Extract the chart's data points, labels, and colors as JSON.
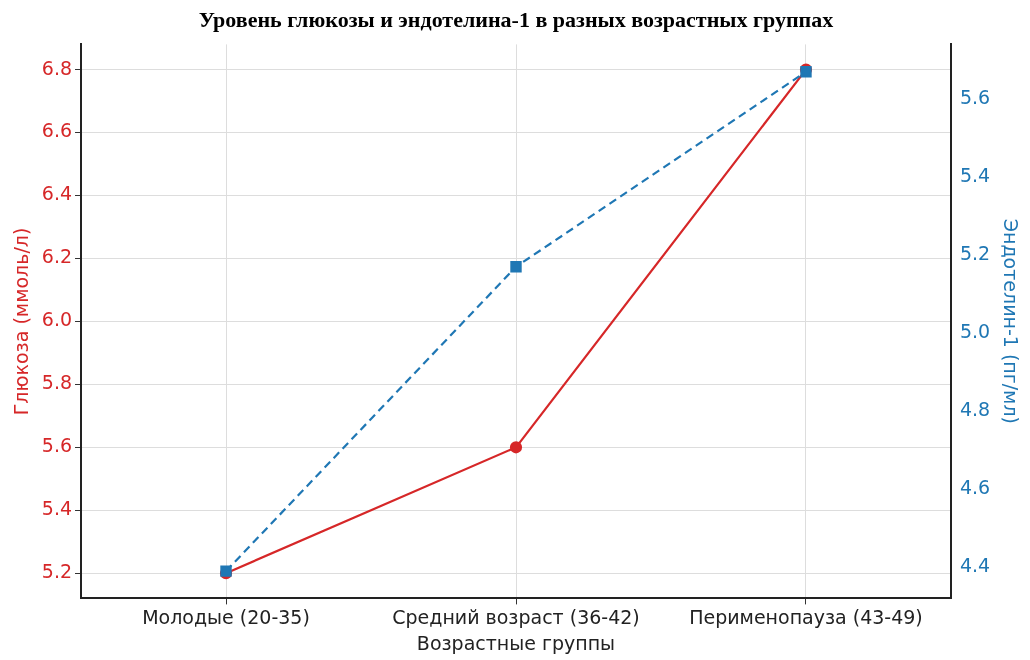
{
  "chart_data": {
    "type": "line",
    "title": "Уровень глюкозы и эндотелина-1 в разных возрастных группах",
    "categories": [
      "Молодые (20-35)",
      "Средний возраст (36-42)",
      "Перименопауза (43-49)"
    ],
    "xlabel": "Возрастные группы",
    "ylabel": "Глюкоза (ммоль/л)",
    "y2label": "Эндотелин-1 (пг/мл)",
    "series": [
      {
        "color": "#d62728",
        "values": [
          5.2,
          5.6,
          6.8
        ],
        "marker": "circle",
        "line_style": "solid"
      },
      {
        "color": "#1f77b4",
        "values": [
          4.39,
          5.17,
          5.67
        ],
        "marker": "square",
        "line_style": "dashed",
        "axis": "y2"
      }
    ],
    "ylim": [
      5.12,
      6.88
    ],
    "yticks": [
      5.2,
      5.4,
      5.6,
      5.8,
      {
        "value": 6,
        "label": "6.0"
      },
      6.2,
      6.4,
      6.6,
      6.8
    ],
    "y2lim": [
      4.32,
      5.74
    ],
    "y2ticks": [
      4.4,
      4.6,
      4.8,
      {
        "value": 5,
        "label": "5.0"
      },
      5.2,
      5.4,
      5.6
    ],
    "grid": true,
    "legend": false
  }
}
